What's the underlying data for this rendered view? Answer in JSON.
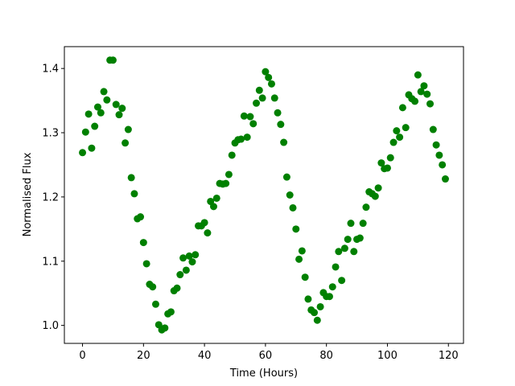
{
  "chart_data": {
    "type": "scatter",
    "x_label": "Time (Hours)",
    "y_label": "Normalised Flux",
    "color": "#008000",
    "x": [
      0,
      1,
      2,
      3,
      4,
      5,
      6,
      7,
      8,
      9,
      10,
      11,
      12,
      13,
      14,
      15,
      16,
      17,
      18,
      19,
      20,
      21,
      22,
      23,
      24,
      25,
      26,
      27,
      28,
      29,
      30,
      31,
      32,
      33,
      34,
      35,
      36,
      37,
      38,
      39,
      40,
      41,
      42,
      43,
      44,
      45,
      46,
      47,
      48,
      49,
      50,
      51,
      52,
      53,
      54,
      55,
      56,
      57,
      58,
      59,
      60,
      61,
      62,
      63,
      64,
      65,
      66,
      67,
      68,
      69,
      70,
      71,
      72,
      73,
      74,
      75,
      76,
      77,
      78,
      79,
      80,
      81,
      82,
      83,
      84,
      85,
      86,
      87,
      88,
      89,
      90,
      91,
      92,
      93,
      94,
      95,
      96,
      97,
      98,
      99,
      100,
      101,
      102,
      103,
      104,
      105,
      106,
      107,
      108,
      109,
      110,
      111,
      112,
      113,
      114,
      115,
      116,
      117,
      118,
      119
    ],
    "values": [
      1.269,
      1.301,
      1.329,
      1.276,
      1.31,
      1.34,
      1.331,
      1.364,
      1.351,
      1.413,
      1.413,
      1.344,
      1.328,
      1.338,
      1.284,
      1.305,
      1.23,
      1.205,
      1.166,
      1.169,
      1.129,
      1.096,
      1.064,
      1.06,
      1.033,
      1.001,
      0.993,
      0.996,
      1.018,
      1.021,
      1.054,
      1.058,
      1.079,
      1.105,
      1.086,
      1.108,
      1.099,
      1.11,
      1.155,
      1.155,
      1.16,
      1.144,
      1.193,
      1.185,
      1.198,
      1.221,
      1.22,
      1.221,
      1.235,
      1.265,
      1.284,
      1.289,
      1.29,
      1.326,
      1.293,
      1.325,
      1.314,
      1.346,
      1.366,
      1.354,
      1.395,
      1.386,
      1.376,
      1.354,
      1.331,
      1.313,
      1.285,
      1.231,
      1.203,
      1.183,
      1.15,
      1.103,
      1.116,
      1.075,
      1.041,
      1.024,
      1.02,
      1.008,
      1.029,
      1.051,
      1.045,
      1.045,
      1.06,
      1.091,
      1.115,
      1.07,
      1.12,
      1.134,
      1.159,
      1.115,
      1.134,
      1.136,
      1.159,
      1.184,
      1.208,
      1.205,
      1.201,
      1.214,
      1.253,
      1.244,
      1.245,
      1.261,
      1.285,
      1.303,
      1.293,
      1.339,
      1.308,
      1.359,
      1.353,
      1.349,
      1.39,
      1.364,
      1.373,
      1.36,
      1.345,
      1.305,
      1.281,
      1.265,
      1.25,
      1.228
    ],
    "xlim": [
      -5.95,
      124.95
    ],
    "ylim": [
      0.972,
      1.434
    ],
    "xticks": [
      0,
      20,
      40,
      60,
      80,
      100,
      120
    ],
    "yticks": [
      {
        "value": 1.0,
        "label": "1.0"
      },
      1.1,
      1.2,
      1.3,
      1.4
    ]
  }
}
